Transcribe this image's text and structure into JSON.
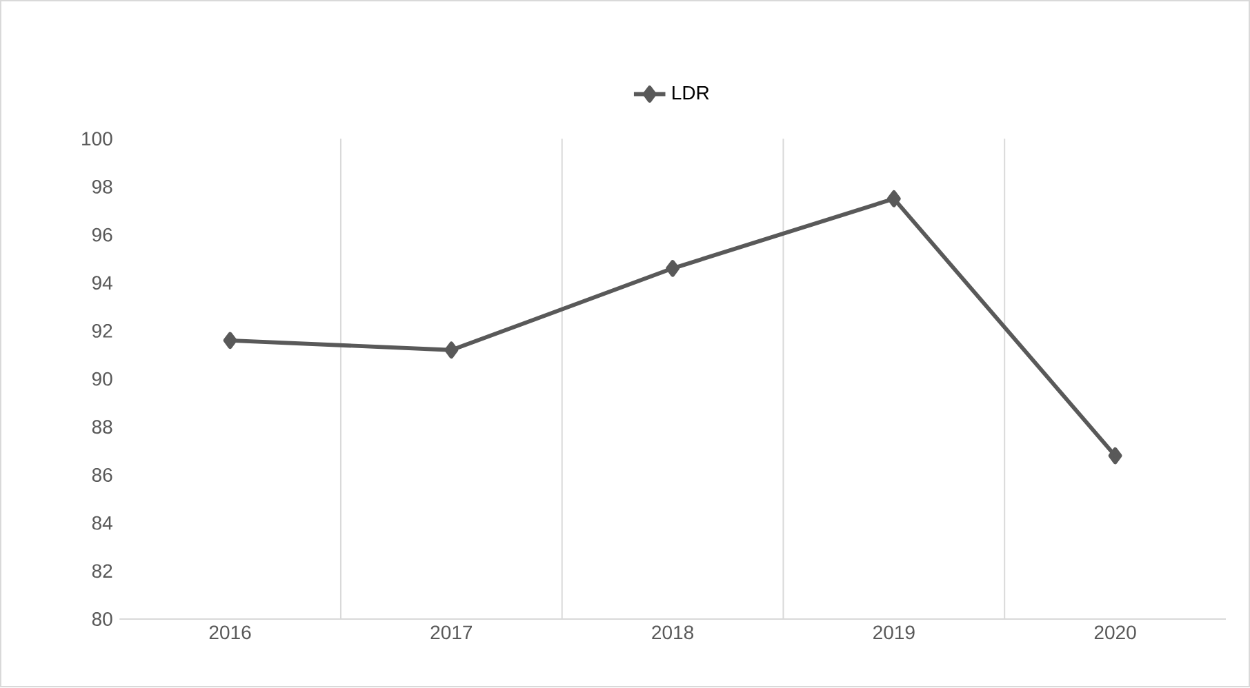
{
  "chart_data": {
    "type": "line",
    "categories": [
      "2016",
      "2017",
      "2018",
      "2019",
      "2020"
    ],
    "series": [
      {
        "name": "LDR",
        "color": "#595959",
        "values": [
          91.6,
          91.2,
          94.6,
          97.5,
          86.8
        ]
      }
    ],
    "ylim": [
      80,
      100
    ],
    "yticks": [
      80,
      82,
      84,
      86,
      88,
      90,
      92,
      94,
      96,
      98,
      100
    ],
    "grid": "x",
    "legend": "top",
    "marker": "diamond",
    "line_style": "solid"
  }
}
